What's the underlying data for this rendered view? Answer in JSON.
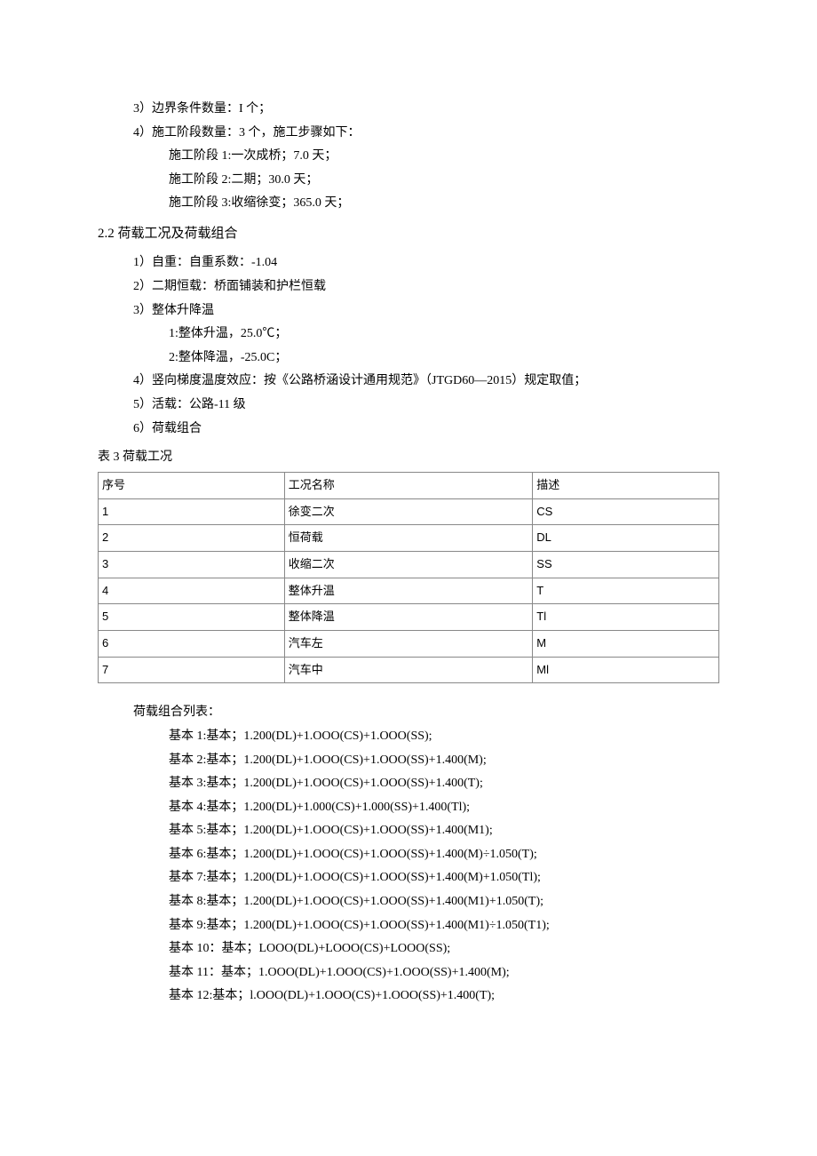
{
  "top_lines": {
    "l1": "3）边界条件数量：I 个；",
    "l2": "4）施工阶段数量：3 个，施工步骤如下：",
    "l3": "施工阶段 1:一次成桥；7.0 天；",
    "l4": "施工阶段 2:二期；30.0 天；",
    "l5": "施工阶段 3:收缩徐变；365.0 天；"
  },
  "section_2_2_title": "2.2 荷载工况及荷载组合",
  "loads": {
    "l1": "1）自重：自重系数：-1.04",
    "l2": "2）二期恒载：桥面铺装和护栏恒载",
    "l3": "3）整体升降温",
    "l3a": "1:整体升温，25.0℃；",
    "l3b": "2:整体降温，-25.0C；",
    "l4": "4）竖向梯度温度效应：按《公路桥涵设计通用规范》（JTGD60—2015）规定取值；",
    "l5": "5）活载：公路-11 级",
    "l6": "6）荷载组合"
  },
  "table3": {
    "caption": "表 3 荷载工况",
    "header": {
      "c1": "序号",
      "c2": "工况名称",
      "c3": "描述"
    },
    "rows": [
      {
        "c1": "1",
        "c2": "徐变二次",
        "c3": "CS"
      },
      {
        "c1": "2",
        "c2": "恒荷载",
        "c3": "DL"
      },
      {
        "c1": "3",
        "c2": "收缩二次",
        "c3": "SS"
      },
      {
        "c1": "4",
        "c2": "整体升温",
        "c3": "T"
      },
      {
        "c1": "5",
        "c2": "整体降温",
        "c3": "Tl"
      },
      {
        "c1": "6",
        "c2": "汽车左",
        "c3": "M"
      },
      {
        "c1": "7",
        "c2": "汽车中",
        "c3": "Ml"
      }
    ]
  },
  "combo": {
    "title": "荷载组合列表：",
    "items": [
      "基本 1:基本；1.200(DL)+1.OOO(CS)+1.OOO(SS);",
      "基本 2:基本；1.200(DL)+1.OOO(CS)+1.OOO(SS)+1.400(M);",
      "基本 3:基本；1.200(DL)+1.OOO(CS)+1.OOO(SS)+1.400(T);",
      "基本 4:基本；1.200(DL)+1.000(CS)+1.000(SS)+1.400(Tl);",
      "基本 5:基本；1.200(DL)+1.OOO(CS)+1.OOO(SS)+1.400(M1);",
      "基本 6:基本；1.200(DL)+1.OOO(CS)+1.OOO(SS)+1.400(M)÷1.050(T);",
      "基本 7:基本；1.200(DL)+1.OOO(CS)+1.OOO(SS)+1.400(M)+1.050(Tl);",
      "基本 8:基本；1.200(DL)+1.OOO(CS)+1.OOO(SS)+1.400(M1)+1.050(T);",
      "基本 9:基本；1.200(DL)+1.OOO(CS)+1.OOO(SS)+1.400(M1)÷1.050(T1);",
      "基本 10：基本；LOOO(DL)+LOOO(CS)+LOOO(SS);",
      "基本 11：基本；1.OOO(DL)+1.OOO(CS)+1.OOO(SS)+1.400(M);",
      "基本 12:基本；l.OOO(DL)+1.OOO(CS)+1.OOO(SS)+1.400(T);"
    ]
  }
}
